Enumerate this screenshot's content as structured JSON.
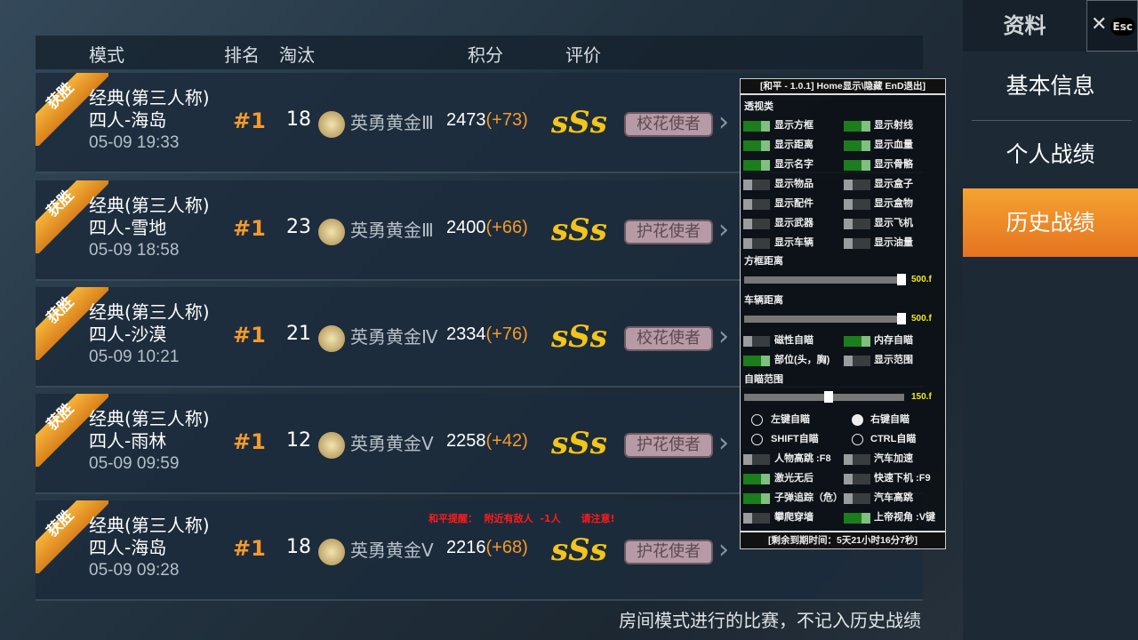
{
  "header": {
    "mode": "模式",
    "rank": "排名",
    "kills": "淘汰",
    "score": "积分",
    "rating": "评价"
  },
  "rows": [
    {
      "ribbon": "获胜",
      "mode": "经典(第三人称)",
      "map": "四人-海岛",
      "time": "05-09 19:33",
      "rank": "#1",
      "kills": "18",
      "tier": "英勇黄金Ⅲ",
      "score": "2473",
      "delta": "(+73)",
      "grade": "sSs",
      "badge": "校花使者"
    },
    {
      "ribbon": "获胜",
      "mode": "经典(第三人称)",
      "map": "四人-雪地",
      "time": "05-09 18:58",
      "rank": "#1",
      "kills": "23",
      "tier": "英勇黄金Ⅲ",
      "score": "2400",
      "delta": "(+66)",
      "grade": "sSs",
      "badge": "护花使者"
    },
    {
      "ribbon": "获胜",
      "mode": "经典(第三人称)",
      "map": "四人-沙漠",
      "time": "05-09 10:21",
      "rank": "#1",
      "kills": "21",
      "tier": "英勇黄金Ⅳ",
      "score": "2334",
      "delta": "(+76)",
      "grade": "sSs",
      "badge": "校花使者"
    },
    {
      "ribbon": "获胜",
      "mode": "经典(第三人称)",
      "map": "四人-雨林",
      "time": "05-09 09:59",
      "rank": "#1",
      "kills": "12",
      "tier": "英勇黄金Ⅴ",
      "score": "2258",
      "delta": "(+42)",
      "grade": "sSs",
      "badge": "护花使者"
    },
    {
      "ribbon": "获胜",
      "mode": "经典(第三人称)",
      "map": "四人-海岛",
      "time": "05-09 09:28",
      "rank": "#1",
      "kills": "18",
      "tier": "英勇黄金Ⅴ",
      "score": "2216",
      "delta": "(+68)",
      "grade": "sSs",
      "badge": "护花使者"
    }
  ],
  "warning": "和平提醒：  附近有敌人  -1人      请注意!",
  "footer": "房间模式进行的比赛，不记入历史战绩",
  "sidebar": {
    "title": "资料",
    "close": "✕",
    "esc": "Esc",
    "items": [
      {
        "label": "基本信息",
        "active": false
      },
      {
        "label": "个人战绩",
        "active": false
      },
      {
        "label": "历史战绩",
        "active": true
      }
    ]
  },
  "menu": {
    "title": "[和平 - 1.0.1] Home显示\\隐藏 EnD退出]",
    "section_esp": "透视类",
    "esp": [
      {
        "label": "显示方框",
        "on": true
      },
      {
        "label": "显示射线",
        "on": true
      },
      {
        "label": "显示距离",
        "on": true
      },
      {
        "label": "显示血量",
        "on": true
      },
      {
        "label": "显示名字",
        "on": true
      },
      {
        "label": "显示骨骼",
        "on": true
      },
      {
        "label": "显示物品",
        "on": false
      },
      {
        "label": "显示盒子",
        "on": false
      },
      {
        "label": "显示配件",
        "on": false
      },
      {
        "label": "显示盒物",
        "on": false
      },
      {
        "label": "显示武器",
        "on": false
      },
      {
        "label": "显示飞机",
        "on": false
      },
      {
        "label": "显示车辆",
        "on": false
      },
      {
        "label": "显示油量",
        "on": false
      }
    ],
    "box_dist_label": "方框距离",
    "box_dist": "500.f",
    "car_dist_label": "车辆距离",
    "car_dist": "500.f",
    "aim": [
      {
        "label": "磁性自瞄",
        "on": false
      },
      {
        "label": "内存自瞄",
        "on": true
      },
      {
        "label": "部位(头，胸)",
        "on": true
      },
      {
        "label": "显示范围",
        "on": false
      }
    ],
    "aim_range_label": "自瞄范围",
    "aim_range": "150.f",
    "radios": [
      {
        "label": "左键自瞄",
        "on": false
      },
      {
        "label": "右键自瞄",
        "on": true
      },
      {
        "label": "SHIFT自瞄",
        "on": false
      },
      {
        "label": "CTRL自瞄",
        "on": false
      }
    ],
    "misc": [
      {
        "label": "人物高跳 :F8",
        "on": false
      },
      {
        "label": "汽车加速",
        "on": false
      },
      {
        "label": "激光无后",
        "on": true
      },
      {
        "label": "快速下机 :F9",
        "on": false
      },
      {
        "label": "子弹追踪（危）",
        "on": true
      },
      {
        "label": "汽车高跳",
        "on": false
      },
      {
        "label": "攀爬穿墙",
        "on": false
      },
      {
        "label": "上帝视角 :V键",
        "on": true
      }
    ],
    "expiry": "[剩余到期时间：5天21小时16分7秒]"
  }
}
